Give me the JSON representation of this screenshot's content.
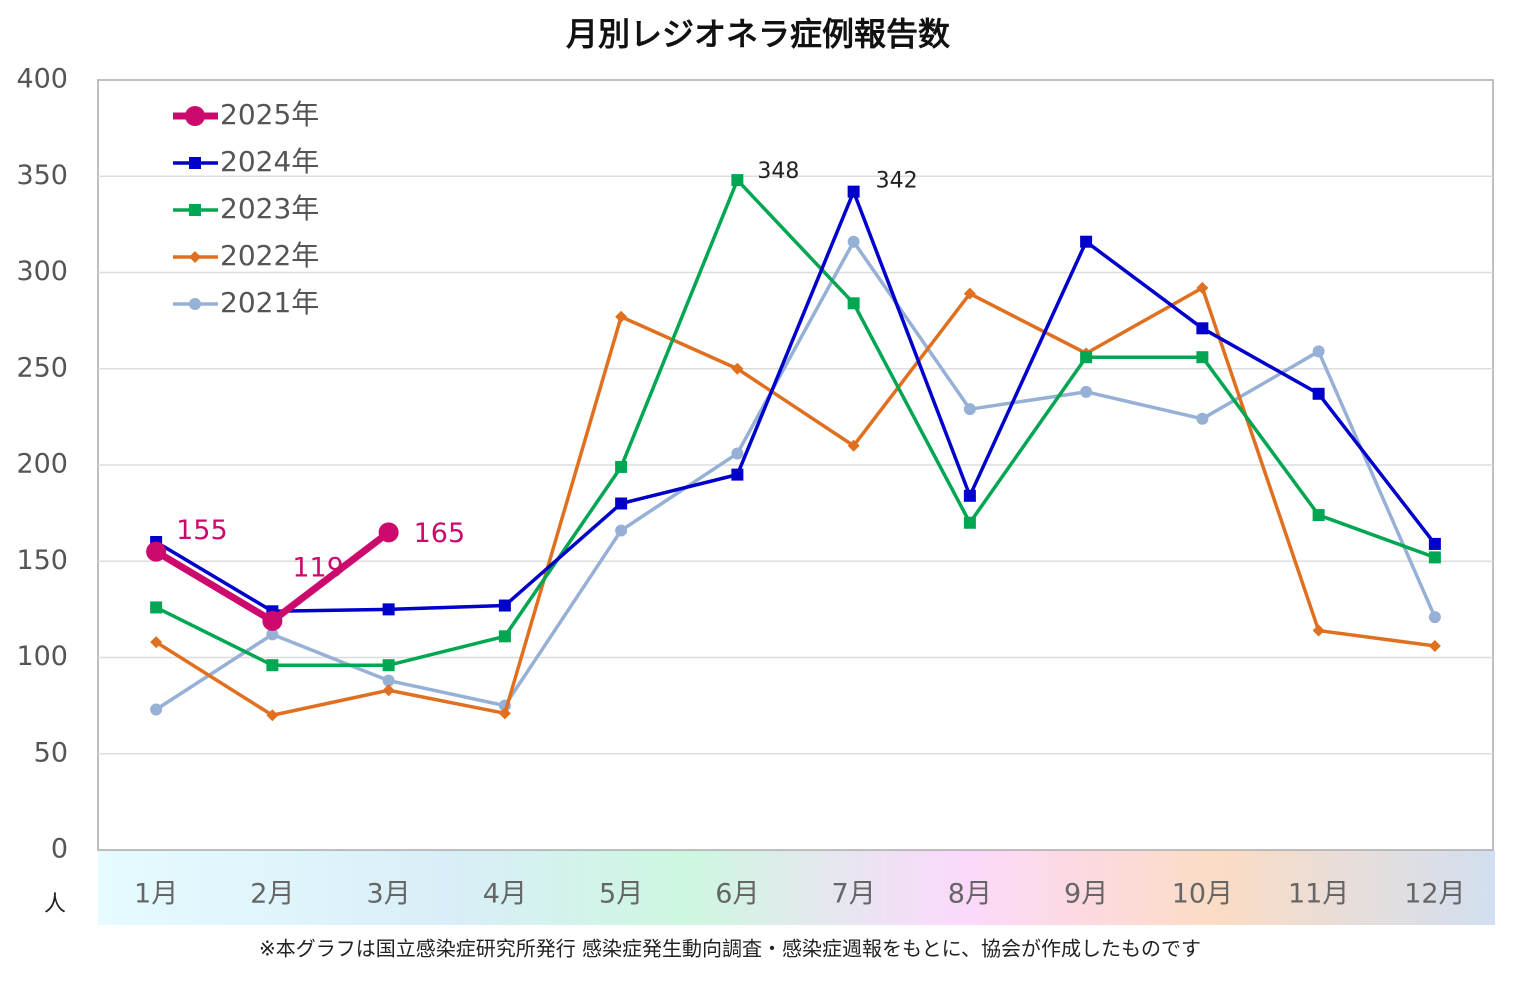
{
  "chart_data": {
    "type": "line",
    "title": "月別レジオネラ症例報告数",
    "y_unit": "人",
    "footnote": "※本グラフは国立感染症研究所発行 感染症発生動向調査・感染症週報をもとに、協会が作成したものです",
    "categories": [
      "1月",
      "2月",
      "3月",
      "4月",
      "5月",
      "6月",
      "7月",
      "8月",
      "9月",
      "10月",
      "11月",
      "12月"
    ],
    "ylim": [
      0,
      400
    ],
    "yticks": [
      0,
      50,
      100,
      150,
      200,
      250,
      300,
      350,
      400
    ],
    "grid": true,
    "legend": "upper-left",
    "series": [
      {
        "name": "2025年",
        "color": "#cc0a6e",
        "marker": "circle",
        "values": [
          155,
          119,
          165,
          null,
          null,
          null,
          null,
          null,
          null,
          null,
          null,
          null
        ]
      },
      {
        "name": "2024年",
        "color": "#0000cc",
        "marker": "square",
        "values": [
          160,
          124,
          125,
          127,
          180,
          195,
          342,
          184,
          316,
          271,
          237,
          159
        ]
      },
      {
        "name": "2023年",
        "color": "#00a651",
        "marker": "square",
        "values": [
          126,
          96,
          96,
          111,
          199,
          348,
          284,
          170,
          256,
          256,
          174,
          152
        ]
      },
      {
        "name": "2022年",
        "color": "#e07020",
        "marker": "diamond",
        "values": [
          108,
          70,
          83,
          71,
          277,
          250,
          210,
          289,
          258,
          292,
          114,
          106
        ]
      },
      {
        "name": "2021年",
        "color": "#96b0d6",
        "marker": "circle",
        "values": [
          73,
          112,
          88,
          75,
          166,
          206,
          316,
          229,
          238,
          224,
          259,
          121
        ]
      }
    ]
  }
}
